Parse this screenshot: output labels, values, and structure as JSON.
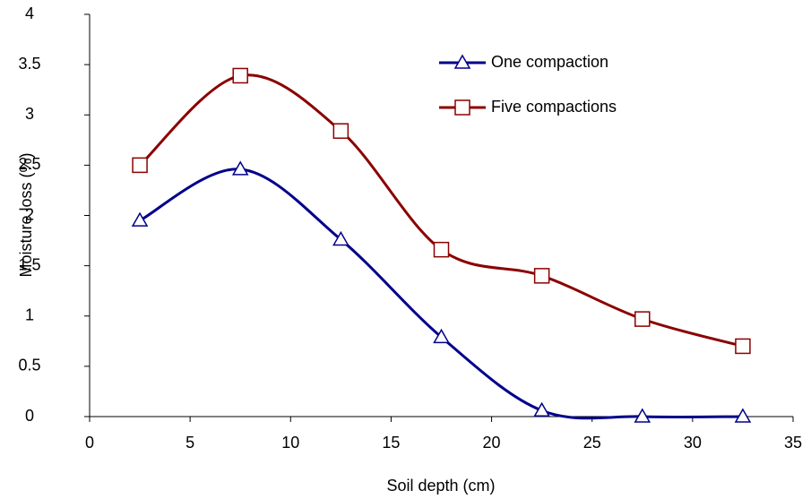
{
  "chart_data": {
    "type": "line",
    "x_label": "Soil depth (cm)",
    "y_label": "Moisture loss (%)",
    "x": [
      2.5,
      7.5,
      12.5,
      17.5,
      22.5,
      27.5,
      32.5
    ],
    "series": [
      {
        "name": "One compaction",
        "color": "#00008b",
        "marker": "triangle",
        "values": [
          1.95,
          2.46,
          1.76,
          0.79,
          0.06,
          0,
          0
        ]
      },
      {
        "name": "Five compactions",
        "color": "#8b0000",
        "marker": "square",
        "values": [
          2.5,
          3.39,
          2.84,
          1.66,
          1.4,
          0.97,
          0.7
        ]
      }
    ],
    "xlim": [
      0,
      35
    ],
    "xticks": [
      0,
      5,
      10,
      15,
      20,
      25,
      30,
      35
    ],
    "ylim": [
      0,
      4
    ],
    "yticks": [
      0,
      0.5,
      1,
      1.5,
      2,
      2.5,
      3,
      3.5,
      4
    ],
    "smooth": true,
    "legend": "top-right"
  }
}
